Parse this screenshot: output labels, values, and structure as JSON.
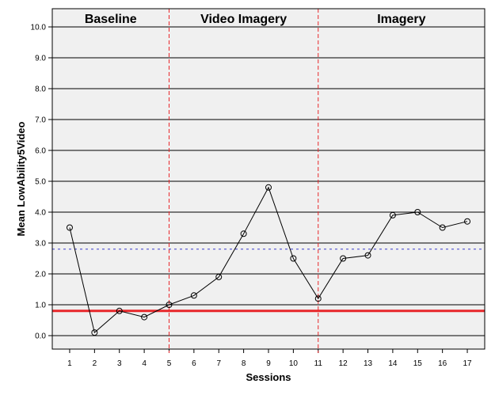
{
  "chart_data": {
    "type": "line",
    "xlabel": "Sessions",
    "ylabel": "Mean LowAbility5Video",
    "x": [
      1,
      2,
      3,
      4,
      5,
      6,
      7,
      8,
      9,
      10,
      11,
      12,
      13,
      14,
      15,
      16,
      17
    ],
    "values": [
      3.5,
      0.1,
      0.8,
      0.6,
      1.0,
      1.3,
      1.9,
      3.3,
      4.8,
      2.5,
      1.2,
      2.5,
      2.6,
      3.9,
      4.0,
      3.5,
      3.7
    ],
    "x_tick_labels": [
      "1",
      "2",
      "3",
      "4",
      "5",
      "6",
      "7",
      "8",
      "9",
      "10",
      "11",
      "12",
      "13",
      "14",
      "15",
      "16",
      "17"
    ],
    "y_tick_labels": [
      "0.0",
      "1.0",
      "2.0",
      "3.0",
      "4.0",
      "5.0",
      "6.0",
      "7.0",
      "8.0",
      "9.0",
      "10.0"
    ],
    "ylim": [
      0,
      10
    ],
    "xlim": [
      0.3,
      17.7
    ],
    "grid": "horizontal",
    "phases": [
      {
        "label": "Baseline",
        "start": 0.3,
        "end": 5
      },
      {
        "label": "Video Imagery",
        "start": 5,
        "end": 11
      },
      {
        "label": "Imagery",
        "start": 11,
        "end": 17.7
      }
    ],
    "phase_change_lines": [
      5,
      11
    ],
    "reference_lines": [
      {
        "y": 0.8,
        "style": "solid",
        "color": "#e8262a"
      },
      {
        "y": 2.8,
        "style": "dotted",
        "color": "#3a3acc"
      }
    ],
    "colors": {
      "plot_background": "#f0f0f0",
      "line": "#000000",
      "phase_line": "#e8262a"
    }
  }
}
